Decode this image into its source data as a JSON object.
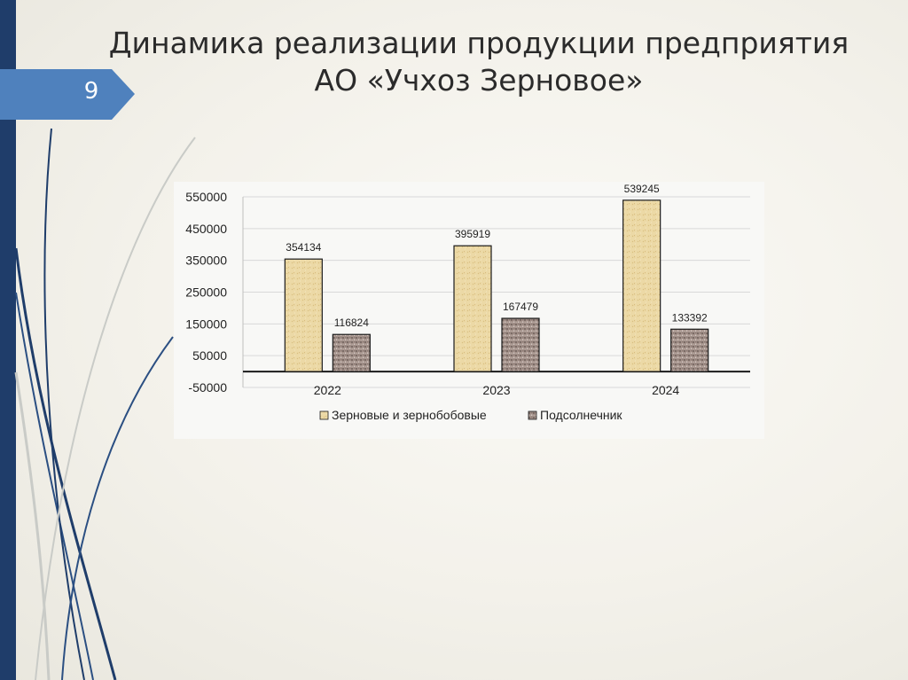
{
  "slide": {
    "number": "9",
    "title_line1": "Динамика реализации продукции предприятия",
    "title_line2": "АО «Учхоз Зерновое»"
  },
  "colors": {
    "band": "#1f3d6a",
    "tab": "#4f81bd",
    "series1": "#e9d6a3",
    "series2": "#9c8b84"
  },
  "chart_data": {
    "type": "bar",
    "categories": [
      "2022",
      "2023",
      "2024"
    ],
    "series": [
      {
        "name": "Зерновые и зернобобовые",
        "values": [
          354134,
          395919,
          539245
        ]
      },
      {
        "name": "Подсолнечник",
        "values": [
          116824,
          167479,
          133392
        ]
      }
    ],
    "ylim": [
      -50000,
      550000
    ],
    "yticks": [
      550000,
      450000,
      350000,
      250000,
      150000,
      50000,
      -50000
    ],
    "ytick_labels": [
      "550000",
      "450000",
      "350000",
      "250000",
      "150000",
      "50000",
      "-50000"
    ],
    "grid": true,
    "legend": "bottom",
    "data_labels": true
  }
}
